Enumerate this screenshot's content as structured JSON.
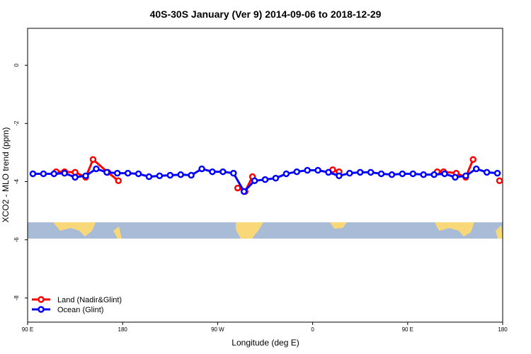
{
  "chart_data": {
    "type": "line",
    "title": "40S-30S January (Ver 9)   2014-09-06 to 2018-12-29",
    "x_label": "Longitude (deg E)",
    "y_label": "XCO2 - MLO trend (ppm)",
    "xlim": [
      90,
      540
    ],
    "ylim": [
      -8.83,
      1.27
    ],
    "xticks": [
      {
        "value": 90,
        "label": "90 E"
      },
      {
        "value": 180,
        "label": "180"
      },
      {
        "value": 270,
        "label": "90 W"
      },
      {
        "value": 360,
        "label": "0"
      },
      {
        "value": 450,
        "label": "90 E"
      },
      {
        "value": 540,
        "label": "180"
      }
    ],
    "yticks": [
      0,
      -2,
      -4,
      -6,
      -8
    ],
    "legend": "bottom-left",
    "series": [
      {
        "name": "Land (Nadir&Glint)",
        "color": "#ff0000",
        "x": [
          117,
          125,
          135,
          145,
          152,
          166,
          176,
          200,
          289,
          296,
          303,
          340,
          379,
          385,
          420,
          478,
          484,
          496,
          505,
          512,
          525,
          537
        ],
        "values": [
          -3.66,
          -3.66,
          -3.68,
          -3.85,
          -3.24,
          -3.68,
          -3.97,
          null,
          -4.22,
          -4.34,
          -3.83,
          null,
          -3.59,
          -3.66,
          null,
          -3.66,
          -3.66,
          -3.71,
          -3.85,
          -3.24,
          null,
          -3.97
        ]
      },
      {
        "name": "Ocean (Glint)",
        "color": "#0000ff",
        "x": [
          95,
          105,
          115,
          125,
          135,
          145,
          155,
          165,
          175,
          185,
          195,
          205,
          215,
          225,
          235,
          245,
          255,
          265,
          275,
          285,
          295,
          305,
          315,
          325,
          335,
          345,
          355,
          365,
          375,
          385,
          395,
          405,
          415,
          425,
          435,
          445,
          455,
          465,
          475,
          485,
          495,
          505,
          515,
          525,
          535
        ],
        "values": [
          -3.73,
          -3.73,
          -3.73,
          -3.71,
          -3.85,
          -3.8,
          -3.56,
          -3.68,
          -3.71,
          -3.71,
          -3.73,
          -3.83,
          -3.8,
          -3.78,
          -3.76,
          -3.78,
          -3.56,
          -3.66,
          -3.66,
          -3.71,
          -4.34,
          -3.97,
          -3.93,
          -3.88,
          -3.73,
          -3.66,
          -3.61,
          -3.61,
          -3.68,
          -3.8,
          -3.71,
          -3.68,
          -3.68,
          -3.73,
          -3.76,
          -3.73,
          -3.73,
          -3.76,
          -3.76,
          -3.73,
          -3.85,
          -3.8,
          -3.56,
          -3.68,
          -3.71
        ]
      }
    ]
  }
}
